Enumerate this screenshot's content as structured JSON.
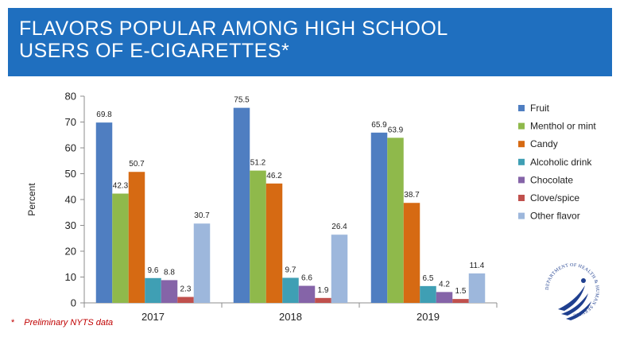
{
  "header": {
    "title_line1": "FLAVORS POPULAR AMONG HIGH SCHOOL",
    "title_line2": "USERS OF E-CIGARETTES*"
  },
  "footnote": {
    "marker": "*",
    "text": "Preliminary NYTS data"
  },
  "logo": {
    "text": "DEPARTMENT OF HEALTH & HUMAN SERVICES · USA"
  },
  "chart_data": {
    "type": "bar",
    "title": "",
    "xlabel": "",
    "ylabel": "Percent",
    "ylim": [
      0,
      80
    ],
    "yticks": [
      0,
      10,
      20,
      30,
      40,
      50,
      60,
      70,
      80
    ],
    "grid": false,
    "legend_position": "right",
    "categories": [
      "2017",
      "2018",
      "2019"
    ],
    "series": [
      {
        "name": "Fruit",
        "color": "#4f7ec1",
        "values": [
          69.8,
          75.5,
          65.9
        ]
      },
      {
        "name": "Menthol or mint",
        "color": "#8fb94b",
        "values": [
          42.3,
          51.2,
          63.9
        ]
      },
      {
        "name": "Candy",
        "color": "#d66a13",
        "values": [
          50.7,
          46.2,
          38.7
        ]
      },
      {
        "name": "Alcoholic drink",
        "color": "#3f9fb4",
        "values": [
          9.6,
          9.7,
          6.5
        ]
      },
      {
        "name": "Chocolate",
        "color": "#8564a8",
        "values": [
          8.8,
          6.6,
          4.2
        ]
      },
      {
        "name": "Clove/spice",
        "color": "#c0504d",
        "values": [
          2.3,
          1.9,
          1.5
        ]
      },
      {
        "name": "Other flavor",
        "color": "#9db7dc",
        "values": [
          30.7,
          26.4,
          11.4
        ]
      }
    ]
  }
}
